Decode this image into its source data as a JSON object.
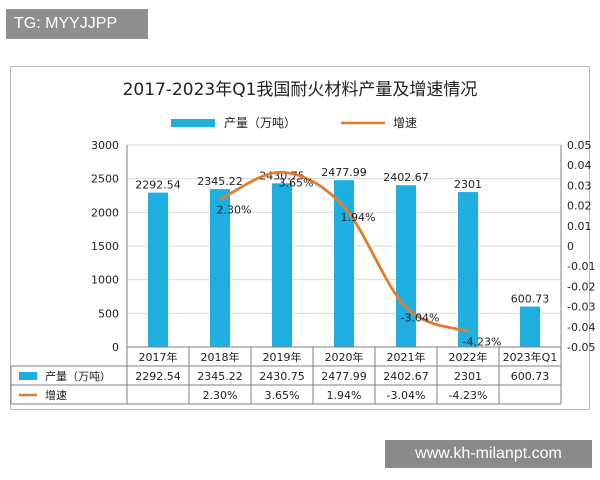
{
  "watermark_top": "TG: MYYJJPP",
  "watermark_bottom": "www.kh-milanpt.com",
  "colors": {
    "bar": "#1faee0",
    "line": "#e07d2c",
    "grid": "#d9d9d9",
    "axis": "#808080"
  },
  "chart_data": {
    "type": "bar",
    "title": "2017-2023年Q1我国耐火材料产量及增速情况",
    "categories": [
      "2017年",
      "2018年",
      "2019年",
      "2020年",
      "2021年",
      "2022年",
      "2023年Q1"
    ],
    "series": [
      {
        "name": "产量（万吨）",
        "type": "bar",
        "axis": "left",
        "values": [
          2292.54,
          2345.22,
          2430.75,
          2477.99,
          2402.67,
          2301,
          600.73
        ],
        "labels": [
          "2292.54",
          "2345.22",
          "2430.75",
          "2477.99",
          "2402.67",
          "2301",
          "600.73"
        ]
      },
      {
        "name": "增速",
        "type": "line",
        "axis": "right",
        "values": [
          null,
          0.023,
          0.0365,
          0.0194,
          -0.0304,
          -0.0423,
          null
        ],
        "labels": [
          "",
          "2.30%",
          "3.65%",
          "1.94%",
          "-3.04%",
          "-4.23%",
          ""
        ]
      }
    ],
    "ylim_left": [
      0,
      3000
    ],
    "yticks_left": [
      "0",
      "500",
      "1000",
      "1500",
      "2000",
      "2500",
      "3000"
    ],
    "ylim_right": [
      -0.05,
      0.05
    ],
    "yticks_right": [
      "-0.05",
      "-0.04",
      "-0.03",
      "-0.02",
      "-0.01",
      "0",
      "0.01",
      "0.02",
      "0.03",
      "0.04",
      "0.05"
    ],
    "legend": [
      "产量（万吨）",
      "增速"
    ],
    "legend_position": "top",
    "grid": true,
    "data_table": true
  }
}
